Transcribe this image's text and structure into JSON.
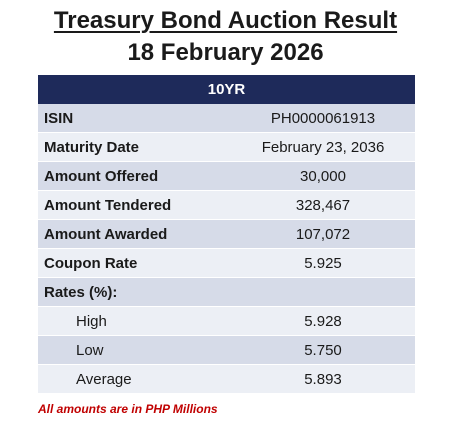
{
  "title": {
    "line1": "Treasury Bond Auction Result",
    "line2": "18 February 2026"
  },
  "table": {
    "header": "10YR",
    "rows": [
      {
        "label": "ISIN",
        "value": "PH0000061913"
      },
      {
        "label": "Maturity Date",
        "value": "February 23, 2036"
      },
      {
        "label": "Amount Offered",
        "value": "30,000"
      },
      {
        "label": "Amount Tendered",
        "value": "328,467"
      },
      {
        "label": "Amount Awarded",
        "value": "107,072"
      },
      {
        "label": "Coupon Rate",
        "value": "5.925"
      },
      {
        "label": "Rates (%):",
        "value": ""
      },
      {
        "label": "High",
        "value": "5.928"
      },
      {
        "label": "Low",
        "value": "5.750"
      },
      {
        "label": "Average",
        "value": "5.893"
      }
    ]
  },
  "note": "All amounts are in PHP Millions",
  "colors": {
    "header_bg": "#1e2a5a",
    "row_shade": "#d6dbe8",
    "row_light": "#eceff5",
    "note_red": "#c00000"
  }
}
